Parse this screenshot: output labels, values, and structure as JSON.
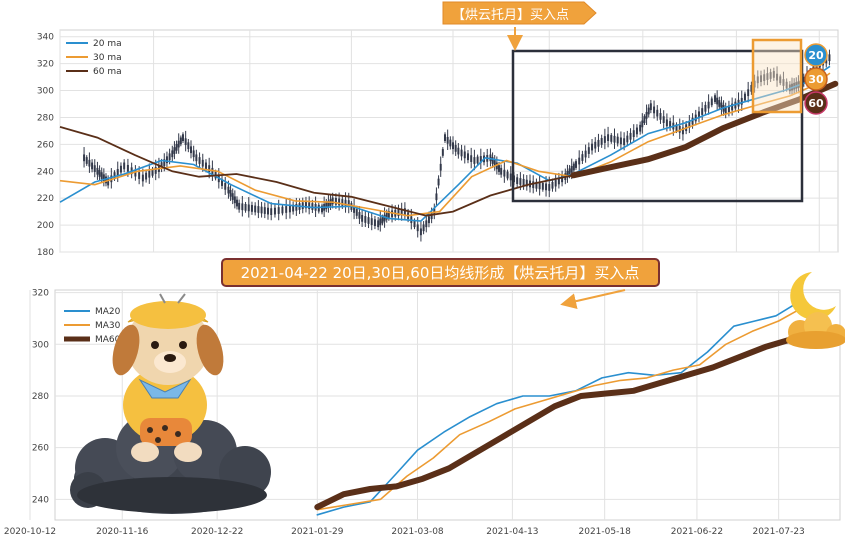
{
  "colors": {
    "ma20": "#2a8fcf",
    "ma30": "#ec9b32",
    "ma60": "#5a2f18",
    "candle": "#33394a",
    "banner_fill": "#f0a23c",
    "banner_border": "#7a3030",
    "box": "#2b2f3a"
  },
  "annotations": {
    "top_arrow_label": "【烘云托月】买入点",
    "banner": "2021-04-22 20日,30日,60日均线形成【烘云托月】买入点",
    "badges": [
      "20",
      "30",
      "60"
    ]
  },
  "chart_data": [
    {
      "type": "line",
      "panel": "top",
      "description_type": "candlestick-with-moving-averages",
      "xlim": [
        "2020-10-12",
        "2021-07-30"
      ],
      "ylim": [
        180,
        345
      ],
      "yticks": [
        180,
        200,
        220,
        240,
        260,
        280,
        300,
        320,
        340
      ],
      "grid": true,
      "legend_position": "top-left",
      "legend": [
        "20 ma",
        "30 ma",
        "60 ma"
      ],
      "price_close": [
        [
          "2020-10-21",
          250
        ],
        [
          "2020-10-26",
          240
        ],
        [
          "2020-10-30",
          232
        ],
        [
          "2020-11-05",
          244
        ],
        [
          "2020-11-12",
          235
        ],
        [
          "2020-11-18",
          242
        ],
        [
          "2020-11-23",
          253
        ],
        [
          "2020-11-27",
          265
        ],
        [
          "2020-12-02",
          250
        ],
        [
          "2020-12-08",
          240
        ],
        [
          "2020-12-14",
          226
        ],
        [
          "2020-12-18",
          214
        ],
        [
          "2020-12-24",
          212
        ],
        [
          "2020-12-30",
          210
        ],
        [
          "2021-01-06",
          212
        ],
        [
          "2021-01-12",
          215
        ],
        [
          "2021-01-18",
          212
        ],
        [
          "2021-01-22",
          218
        ],
        [
          "2021-01-28",
          216
        ],
        [
          "2021-02-02",
          205
        ],
        [
          "2021-02-08",
          201
        ],
        [
          "2021-02-12",
          208
        ],
        [
          "2021-02-18",
          210
        ],
        [
          "2021-02-24",
          195
        ],
        [
          "2021-03-01",
          210
        ],
        [
          "2021-03-05",
          265
        ],
        [
          "2021-03-10",
          255
        ],
        [
          "2021-03-16",
          248
        ],
        [
          "2021-03-22",
          250
        ],
        [
          "2021-03-26",
          240
        ],
        [
          "2021-04-01",
          233
        ],
        [
          "2021-04-07",
          230
        ],
        [
          "2021-04-13",
          228
        ],
        [
          "2021-04-19",
          236
        ],
        [
          "2021-04-23",
          245
        ],
        [
          "2021-04-29",
          258
        ],
        [
          "2021-05-05",
          265
        ],
        [
          "2021-05-11",
          262
        ],
        [
          "2021-05-17",
          272
        ],
        [
          "2021-05-21",
          288
        ],
        [
          "2021-05-27",
          276
        ],
        [
          "2021-06-02",
          270
        ],
        [
          "2021-06-08",
          282
        ],
        [
          "2021-06-14",
          294
        ],
        [
          "2021-06-18",
          285
        ],
        [
          "2021-06-24",
          292
        ],
        [
          "2021-06-30",
          308
        ],
        [
          "2021-07-06",
          312
        ],
        [
          "2021-07-12",
          302
        ],
        [
          "2021-07-16",
          305
        ],
        [
          "2021-07-22",
          318
        ],
        [
          "2021-07-28",
          326
        ]
      ],
      "series": [
        {
          "name": "20 ma",
          "points": [
            [
              "2020-10-12",
              217
            ],
            [
              "2020-10-25",
              232
            ],
            [
              "2020-11-05",
              238
            ],
            [
              "2020-11-19",
              248
            ],
            [
              "2020-12-01",
              245
            ],
            [
              "2020-12-15",
              230
            ],
            [
              "2020-12-30",
              216
            ],
            [
              "2021-01-15",
              213
            ],
            [
              "2021-01-29",
              214
            ],
            [
              "2021-02-12",
              205
            ],
            [
              "2021-02-24",
              203
            ],
            [
              "2021-03-10",
              230
            ],
            [
              "2021-03-20",
              250
            ],
            [
              "2021-04-01",
              246
            ],
            [
              "2021-04-13",
              233
            ],
            [
              "2021-04-22",
              238
            ],
            [
              "2021-05-06",
              252
            ],
            [
              "2021-05-20",
              268
            ],
            [
              "2021-06-03",
              276
            ],
            [
              "2021-06-17",
              287
            ],
            [
              "2021-07-01",
              295
            ],
            [
              "2021-07-10",
              300
            ],
            [
              "2021-07-18",
              306
            ],
            [
              "2021-07-27",
              318
            ]
          ]
        },
        {
          "name": "30 ma",
          "points": [
            [
              "2020-10-12",
              233
            ],
            [
              "2020-10-25",
              230
            ],
            [
              "2020-11-10",
              240
            ],
            [
              "2020-11-26",
              244
            ],
            [
              "2020-12-10",
              240
            ],
            [
              "2020-12-24",
              226
            ],
            [
              "2021-01-08",
              218
            ],
            [
              "2021-01-22",
              217
            ],
            [
              "2021-02-05",
              212
            ],
            [
              "2021-02-19",
              207
            ],
            [
              "2021-03-03",
              210
            ],
            [
              "2021-03-15",
              236
            ],
            [
              "2021-03-28",
              248
            ],
            [
              "2021-04-09",
              240
            ],
            [
              "2021-04-22",
              236
            ],
            [
              "2021-05-06",
              247
            ],
            [
              "2021-05-20",
              262
            ],
            [
              "2021-06-03",
              272
            ],
            [
              "2021-06-17",
              282
            ],
            [
              "2021-07-01",
              290
            ],
            [
              "2021-07-12",
              296
            ],
            [
              "2021-07-20",
              303
            ],
            [
              "2021-07-27",
              313
            ]
          ]
        },
        {
          "name": "60 ma",
          "points": [
            [
              "2020-10-12",
              273
            ],
            [
              "2020-10-26",
              265
            ],
            [
              "2020-11-09",
              252
            ],
            [
              "2020-11-23",
              240
            ],
            [
              "2020-12-03",
              236
            ],
            [
              "2020-12-17",
              238
            ],
            [
              "2021-01-01",
              232
            ],
            [
              "2021-01-15",
              224
            ],
            [
              "2021-01-29",
              221
            ],
            [
              "2021-02-12",
              214
            ],
            [
              "2021-02-26",
              207
            ],
            [
              "2021-03-08",
              210
            ],
            [
              "2021-03-22",
              222
            ],
            [
              "2021-04-05",
              230
            ],
            [
              "2021-04-22",
              237
            ],
            [
              "2021-05-06",
              243
            ],
            [
              "2021-05-20",
              249
            ],
            [
              "2021-06-03",
              258
            ],
            [
              "2021-06-17",
              272
            ],
            [
              "2021-07-01",
              283
            ],
            [
              "2021-07-15",
              293
            ],
            [
              "2021-07-29",
              305
            ]
          ]
        }
      ]
    },
    {
      "type": "line",
      "panel": "bottom",
      "xlim": [
        "2020-10-12",
        "2021-08-02"
      ],
      "ylim": [
        232,
        321
      ],
      "yticks": [
        240,
        260,
        280,
        300,
        320
      ],
      "xticks": [
        "2020-10-12",
        "2020-11-16",
        "2020-12-22",
        "2021-01-29",
        "2021-03-08",
        "2021-04-13",
        "2021-05-18",
        "2021-06-22",
        "2021-07-23"
      ],
      "grid": true,
      "legend_position": "top-left",
      "series": [
        {
          "name": "MA20",
          "points": [
            [
              "2021-01-29",
              234
            ],
            [
              "2021-02-08",
              237
            ],
            [
              "2021-02-18",
              239
            ],
            [
              "2021-02-28",
              250
            ],
            [
              "2021-03-08",
              259
            ],
            [
              "2021-03-18",
              266
            ],
            [
              "2021-03-28",
              272
            ],
            [
              "2021-04-07",
              277
            ],
            [
              "2021-04-17",
              280
            ],
            [
              "2021-04-27",
              280
            ],
            [
              "2021-05-07",
              282
            ],
            [
              "2021-05-17",
              287
            ],
            [
              "2021-05-27",
              289
            ],
            [
              "2021-06-06",
              288
            ],
            [
              "2021-06-16",
              289
            ],
            [
              "2021-06-26",
              297
            ],
            [
              "2021-07-06",
              307
            ],
            [
              "2021-07-14",
              309
            ],
            [
              "2021-07-22",
              311
            ],
            [
              "2021-07-30",
              316
            ]
          ]
        },
        {
          "name": "MA30",
          "points": [
            [
              "2021-01-29",
              236
            ],
            [
              "2021-02-10",
              238
            ],
            [
              "2021-02-22",
              240
            ],
            [
              "2021-03-04",
              249
            ],
            [
              "2021-03-14",
              256
            ],
            [
              "2021-03-24",
              265
            ],
            [
              "2021-04-04",
              270
            ],
            [
              "2021-04-14",
              275
            ],
            [
              "2021-04-24",
              278
            ],
            [
              "2021-05-04",
              281
            ],
            [
              "2021-05-14",
              284
            ],
            [
              "2021-05-24",
              286
            ],
            [
              "2021-06-03",
              287
            ],
            [
              "2021-06-13",
              290
            ],
            [
              "2021-06-23",
              292
            ],
            [
              "2021-07-03",
              300
            ],
            [
              "2021-07-13",
              305
            ],
            [
              "2021-07-23",
              309
            ],
            [
              "2021-07-30",
              313
            ]
          ]
        },
        {
          "name": "MA60",
          "points": [
            [
              "2021-01-29",
              237
            ],
            [
              "2021-02-08",
              242
            ],
            [
              "2021-02-18",
              244
            ],
            [
              "2021-02-28",
              245
            ],
            [
              "2021-03-10",
              248
            ],
            [
              "2021-03-20",
              252
            ],
            [
              "2021-03-30",
              258
            ],
            [
              "2021-04-09",
              264
            ],
            [
              "2021-04-19",
              270
            ],
            [
              "2021-04-29",
              276
            ],
            [
              "2021-05-09",
              280
            ],
            [
              "2021-05-19",
              281
            ],
            [
              "2021-05-29",
              282
            ],
            [
              "2021-06-08",
              285
            ],
            [
              "2021-06-18",
              288
            ],
            [
              "2021-06-28",
              291
            ],
            [
              "2021-07-08",
              295
            ],
            [
              "2021-07-18",
              299
            ],
            [
              "2021-07-28",
              302
            ]
          ]
        }
      ]
    }
  ]
}
